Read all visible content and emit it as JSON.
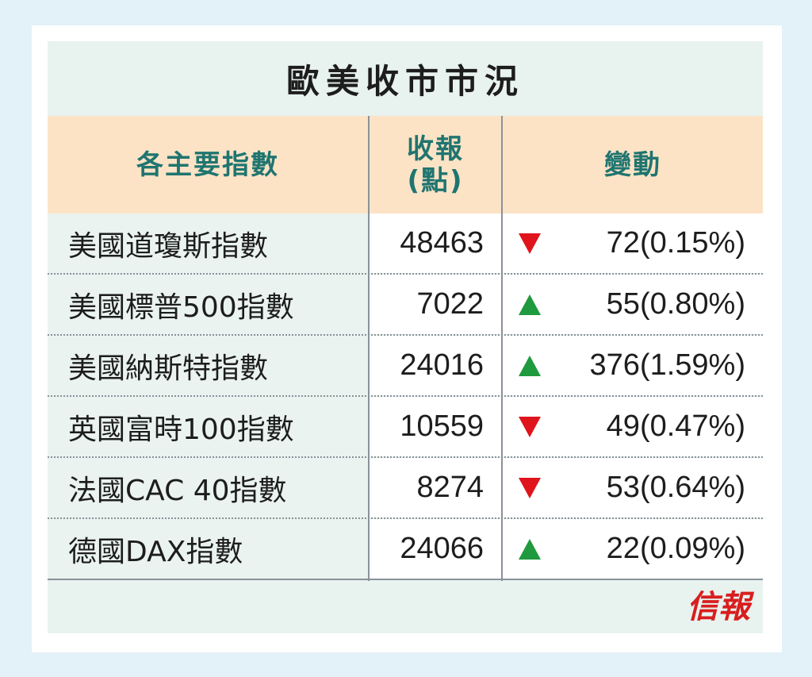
{
  "title": "歐美收市市況",
  "headers": {
    "name": "各主要指數",
    "close_line1": "收報",
    "close_line2": "(點)",
    "change": "變動"
  },
  "rows": [
    {
      "name": "美國道瓊斯指數",
      "close": "48463",
      "direction": "down",
      "change": "72(0.15%)"
    },
    {
      "name": "美國標普500指數",
      "close": "7022",
      "direction": "up",
      "change": "55(0.80%)"
    },
    {
      "name": "美國納斯特指數",
      "close": "24016",
      "direction": "up",
      "change": "376(1.59%)"
    },
    {
      "name": "英國富時100指數",
      "close": "10559",
      "direction": "down",
      "change": "49(0.47%)"
    },
    {
      "name": "法國CAC 40指數",
      "close": "8274",
      "direction": "down",
      "change": "53(0.64%)"
    },
    {
      "name": "德國DAX指數",
      "close": "24066",
      "direction": "up",
      "change": "22(0.09%)"
    }
  ],
  "colors": {
    "up": "#1f9a3e",
    "down": "#e0141b",
    "header_text": "#1f7570",
    "header_bg": "#fce3c6",
    "logo": "#d81e1e"
  },
  "logo": {
    "text": "信報",
    "icon": "hkej-logo"
  }
}
